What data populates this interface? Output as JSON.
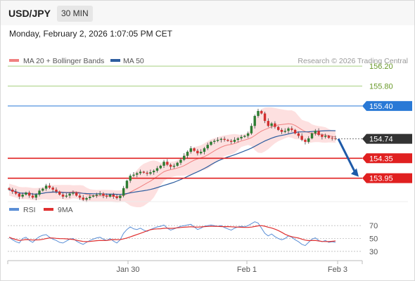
{
  "header": {
    "symbol": "USD/JPY",
    "timeframe": "30 MIN"
  },
  "datetime": "Monday, February 2, 2026 1:07:05 PM CET",
  "legend": {
    "ma20_bb": "MA 20 + Bollinger Bands",
    "ma50": "MA 50",
    "credit": "Research © 2026 Trading Central",
    "rsi": "RSI",
    "rsi_ma": "9MA"
  },
  "colors": {
    "ma20": "#f08080",
    "ma50": "#2d5d9f",
    "bb_fill": "#fde0e0",
    "candle_up": "#2d7d32",
    "candle_down": "#d32f2f",
    "target": "#a8d080",
    "pivot": "#2979d6",
    "support": "#e02020",
    "last": "#333333",
    "rsi": "#5b8fd6",
    "rsi_ma": "#e03030",
    "arrow": "#1e5aa8"
  },
  "chart_data": [
    {
      "type": "candlestick",
      "xlabels": [
        "Jan 30",
        "Feb 1",
        "Feb 3"
      ],
      "ylim": [
        153.55,
        156.4
      ],
      "levels": [
        {
          "value": 156.2,
          "label": "156.20",
          "kind": "target"
        },
        {
          "value": 155.8,
          "label": "155.80",
          "kind": "target"
        },
        {
          "value": 155.4,
          "label": "155.40",
          "kind": "pivot"
        },
        {
          "value": 154.35,
          "label": "154.35",
          "kind": "support"
        },
        {
          "value": 153.95,
          "label": "153.95",
          "kind": "support"
        }
      ],
      "last_price": {
        "value": 154.74,
        "label": "154.74"
      },
      "projection": {
        "from": 154.74,
        "to": 153.95
      },
      "closes": [
        153.72,
        153.68,
        153.64,
        153.58,
        153.62,
        153.66,
        153.6,
        153.56,
        153.62,
        153.7,
        153.74,
        153.8,
        153.76,
        153.72,
        153.68,
        153.62,
        153.58,
        153.6,
        153.64,
        153.66,
        153.6,
        153.56,
        153.52,
        153.55,
        153.58,
        153.6,
        153.62,
        153.64,
        153.6,
        153.58,
        153.62,
        153.58,
        153.55,
        153.6,
        153.75,
        153.9,
        154.0,
        154.02,
        154.05,
        154.08,
        154.06,
        154.04,
        154.07,
        154.1,
        154.15,
        154.2,
        154.28,
        154.22,
        154.18,
        154.2,
        154.26,
        154.32,
        154.4,
        154.48,
        154.55,
        154.5,
        154.45,
        154.48,
        154.55,
        154.62,
        154.68,
        154.7,
        154.72,
        154.74,
        154.72,
        154.7,
        154.68,
        154.72,
        154.75,
        154.78,
        154.8,
        154.85,
        155.0,
        155.2,
        155.3,
        155.25,
        155.1,
        155.0,
        155.05,
        154.98,
        154.92,
        154.88,
        154.9,
        154.95,
        154.92,
        154.85,
        154.8,
        154.72,
        154.68,
        154.75,
        154.85,
        154.9,
        154.82,
        154.78,
        154.8,
        154.76,
        154.75,
        154.74
      ]
    },
    {
      "type": "line",
      "title": "RSI",
      "series": [
        {
          "name": "RSI"
        },
        {
          "name": "9MA"
        }
      ],
      "ylim": [
        20,
        80
      ],
      "yticks": [
        70,
        50,
        30
      ],
      "rsi_values": [
        52,
        48,
        45,
        43,
        50,
        52,
        47,
        44,
        49,
        53,
        55,
        56,
        52,
        49,
        47,
        44,
        43,
        46,
        49,
        50,
        46,
        43,
        41,
        44,
        47,
        49,
        51,
        52,
        49,
        47,
        50,
        46,
        43,
        48,
        58,
        64,
        68,
        65,
        64,
        66,
        63,
        61,
        64,
        66,
        68,
        69,
        71,
        66,
        63,
        65,
        67,
        69,
        70,
        71,
        72,
        68,
        64,
        66,
        69,
        70,
        71,
        70,
        69,
        70,
        67,
        65,
        63,
        66,
        68,
        69,
        68,
        70,
        73,
        76,
        74,
        66,
        58,
        54,
        57,
        53,
        50,
        48,
        50,
        54,
        52,
        48,
        45,
        41,
        39,
        44,
        49,
        51,
        47,
        45,
        47,
        44,
        45,
        44
      ]
    }
  ]
}
